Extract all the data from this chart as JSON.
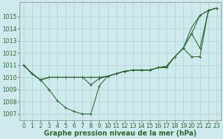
{
  "background_color": "#ceeaed",
  "grid_color": "#afd4d8",
  "line_color": "#2d6a2d",
  "marker_color": "#2d6a2d",
  "xlabel": "Graphe pression niveau de la mer (hPa)",
  "xlabel_fontsize": 7,
  "tick_fontsize": 6,
  "ylim": [
    1006.5,
    1016.2
  ],
  "xlim": [
    -0.5,
    23.5
  ],
  "yticks": [
    1007,
    1008,
    1009,
    1010,
    1011,
    1012,
    1013,
    1014,
    1015
  ],
  "xticks": [
    0,
    1,
    2,
    3,
    4,
    5,
    6,
    7,
    8,
    9,
    10,
    11,
    12,
    13,
    14,
    15,
    16,
    17,
    18,
    19,
    20,
    21,
    22,
    23
  ],
  "series": [
    [
      1011.0,
      1010.3,
      1009.8,
      1009.0,
      1008.1,
      1007.5,
      1007.2,
      1007.0,
      1007.0,
      1009.3,
      1010.1,
      1010.3,
      1010.5,
      1010.6,
      1010.6,
      1010.6,
      1010.8,
      1010.8,
      1011.7,
      1012.4,
      1013.6,
      1015.1,
      1015.5,
      1015.7
    ],
    [
      1011.0,
      1010.3,
      1009.8,
      1010.0,
      1010.0,
      1010.0,
      1010.0,
      1010.0,
      1009.4,
      1009.9,
      1010.1,
      1010.3,
      1010.5,
      1010.6,
      1010.6,
      1010.6,
      1010.8,
      1010.9,
      1011.7,
      1012.4,
      1012.4,
      1011.7,
      1015.5,
      1015.7
    ],
    [
      1011.0,
      1010.3,
      1009.8,
      1010.0,
      1010.0,
      1010.0,
      1010.0,
      1010.0,
      1010.0,
      1010.0,
      1010.1,
      1010.3,
      1010.5,
      1010.6,
      1010.6,
      1010.6,
      1010.8,
      1010.9,
      1011.7,
      1012.4,
      1013.6,
      1012.4,
      1015.5,
      1015.7
    ],
    [
      1011.0,
      1010.3,
      1009.8,
      1010.0,
      1010.0,
      1010.0,
      1010.0,
      1010.0,
      1010.0,
      1010.0,
      1010.1,
      1010.3,
      1010.5,
      1010.6,
      1010.6,
      1010.6,
      1010.8,
      1010.9,
      1011.7,
      1012.4,
      1014.1,
      1015.1,
      1015.5,
      1015.7
    ]
  ],
  "has_markers": [
    true,
    true,
    true,
    false
  ]
}
